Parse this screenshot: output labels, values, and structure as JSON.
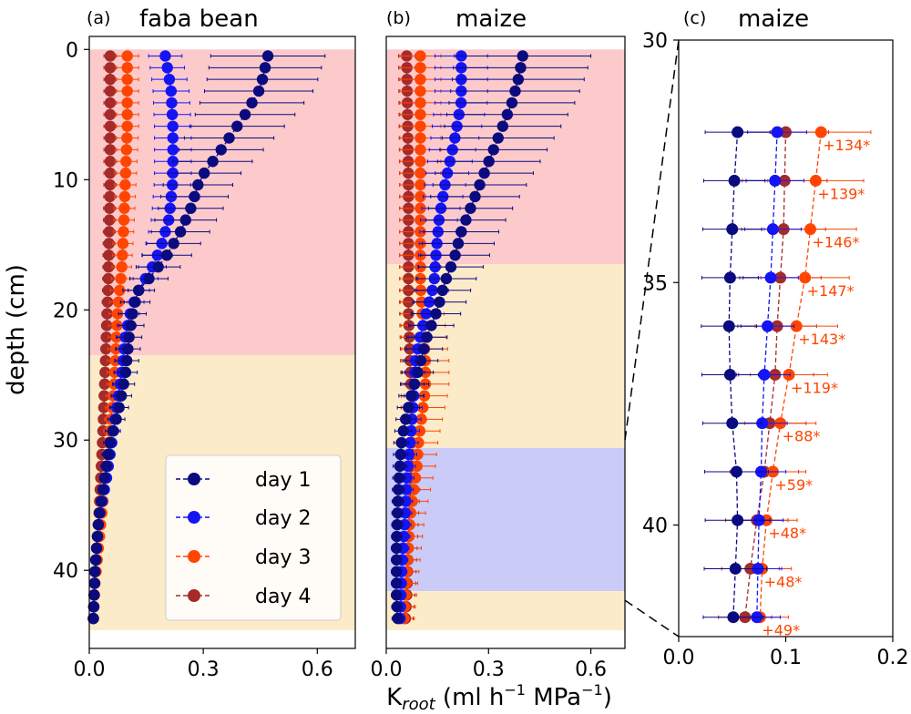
{
  "figure": {
    "ylabel": "depth (cm)",
    "xlabel_main": "K",
    "xlabel_sub": "root",
    "xlabel_rest": " (ml h",
    "xlabel_exp1": "−1",
    "xlabel_mid": " MPa",
    "xlabel_exp2": "−1",
    "xlabel_close": ")"
  },
  "colors": {
    "day1": "#0b0b80",
    "day2": "#1414f5",
    "day3": "#ff4500",
    "day4": "#a52a2a",
    "band_pink": "#fccaca",
    "band_beige": "#fcebc9",
    "band_blue": "#cbcbf8"
  },
  "legend": {
    "placement": "lower-right of panel (a)",
    "entries": [
      "day 1",
      "day 2",
      "day 3",
      "day 4"
    ]
  },
  "chart_data": [
    {
      "panel": "(a)",
      "title": "faba bean",
      "type": "line",
      "xlim": [
        0,
        0.7
      ],
      "ylim": [
        46,
        -1
      ],
      "xticks": [
        "0.0",
        "0.3",
        "0.6"
      ],
      "xtick_values": [
        0,
        0.3,
        0.6
      ],
      "yticks": [
        "0",
        "10",
        "20",
        "30",
        "40"
      ],
      "ytick_values": [
        0,
        10,
        20,
        30,
        40
      ],
      "bands": [
        {
          "color": "pink",
          "from": 0,
          "to": 23.5
        },
        {
          "color": "beige",
          "from": 23.5,
          "to": 44.6
        }
      ],
      "depth": {
        "start": 0.5,
        "step": 0.9,
        "count": 49
      },
      "series": [
        {
          "name": "day 1",
          "err_frac": 0.32,
          "profile": [
            [
              0.5,
              0.47
            ],
            [
              3,
              0.45
            ],
            [
              5,
              0.41
            ],
            [
              8,
              0.34
            ],
            [
              10,
              0.29
            ],
            [
              12,
              0.27
            ],
            [
              14,
              0.24
            ],
            [
              16,
              0.2
            ],
            [
              17.5,
              0.16
            ],
            [
              18.5,
              0.13
            ],
            [
              20,
              0.115
            ],
            [
              22,
              0.105
            ],
            [
              25,
              0.095
            ],
            [
              28,
              0.075
            ],
            [
              30,
              0.055
            ],
            [
              33,
              0.04
            ],
            [
              36,
              0.025
            ],
            [
              40,
              0.015
            ],
            [
              44.3,
              0.01
            ]
          ]
        },
        {
          "name": "day 2",
          "err_frac": 0.22,
          "profile": [
            [
              0.5,
              0.2
            ],
            [
              3,
              0.215
            ],
            [
              6,
              0.22
            ],
            [
              10,
              0.22
            ],
            [
              13,
              0.21
            ],
            [
              15,
              0.19
            ],
            [
              16.5,
              0.17
            ],
            [
              18.5,
              0.13
            ],
            [
              20,
              0.11
            ],
            [
              22,
              0.095
            ],
            [
              25,
              0.085
            ],
            [
              28,
              0.07
            ],
            [
              30,
              0.06
            ],
            [
              33,
              0.045
            ],
            [
              36,
              0.025
            ],
            [
              40,
              0.015
            ],
            [
              44.3,
              0.01
            ]
          ]
        },
        {
          "name": "day 3",
          "err_frac": 0.3,
          "profile": [
            [
              0.5,
              0.1
            ],
            [
              6,
              0.1
            ],
            [
              10,
              0.095
            ],
            [
              14,
              0.09
            ],
            [
              17,
              0.085
            ],
            [
              20,
              0.075
            ],
            [
              23,
              0.07
            ],
            [
              26,
              0.065
            ],
            [
              29,
              0.055
            ],
            [
              32,
              0.045
            ],
            [
              35,
              0.035
            ],
            [
              38,
              0.025
            ],
            [
              41,
              0.015
            ],
            [
              44.3,
              0.01
            ]
          ]
        },
        {
          "name": "day 4",
          "err_frac": 0.3,
          "profile": [
            [
              0.5,
              0.055
            ],
            [
              10,
              0.055
            ],
            [
              18,
              0.05
            ],
            [
              22,
              0.045
            ],
            [
              26,
              0.04
            ],
            [
              30,
              0.035
            ],
            [
              33,
              0.03
            ],
            [
              36,
              0.025
            ],
            [
              40,
              0.015
            ],
            [
              44.3,
              0.01
            ]
          ]
        }
      ]
    },
    {
      "panel": "(b)",
      "title": "maize",
      "type": "line",
      "xlim": [
        0,
        0.7
      ],
      "ylim": [
        46,
        -1
      ],
      "xticks": [
        "0.0",
        "0.3",
        "0.6"
      ],
      "xtick_values": [
        0,
        0.3,
        0.6
      ],
      "yticks": [],
      "ytick_values": [],
      "bands": [
        {
          "color": "pink",
          "from": 0,
          "to": 16.5
        },
        {
          "color": "beige",
          "from": 16.5,
          "to": 30.6
        },
        {
          "color": "blue",
          "from": 30.6,
          "to": 41.6
        },
        {
          "color": "beige",
          "from": 41.6,
          "to": 44.6
        }
      ],
      "depth": {
        "start": 0.5,
        "step": 0.9,
        "count": 49
      },
      "series": [
        {
          "name": "day 1",
          "err_frac": 0.5,
          "profile": [
            [
              0.5,
              0.4
            ],
            [
              2,
              0.39
            ],
            [
              4,
              0.37
            ],
            [
              6,
              0.34
            ],
            [
              8,
              0.31
            ],
            [
              10,
              0.28
            ],
            [
              12,
              0.25
            ],
            [
              14,
              0.22
            ],
            [
              16,
              0.2
            ],
            [
              18,
              0.17
            ],
            [
              20,
              0.15
            ],
            [
              22,
              0.12
            ],
            [
              24,
              0.1
            ],
            [
              26,
              0.08
            ],
            [
              28,
              0.06
            ],
            [
              30,
              0.045
            ],
            [
              34,
              0.035
            ],
            [
              38,
              0.03
            ],
            [
              42,
              0.03
            ],
            [
              44.3,
              0.035
            ]
          ]
        },
        {
          "name": "day 2",
          "err_frac": 0.35,
          "profile": [
            [
              0.5,
              0.22
            ],
            [
              4,
              0.22
            ],
            [
              7,
              0.2
            ],
            [
              10,
              0.175
            ],
            [
              13,
              0.155
            ],
            [
              16,
              0.145
            ],
            [
              18,
              0.14
            ],
            [
              20,
              0.12
            ],
            [
              22,
              0.1
            ],
            [
              24,
              0.085
            ],
            [
              27,
              0.08
            ],
            [
              30,
              0.07
            ],
            [
              33,
              0.06
            ],
            [
              36,
              0.055
            ],
            [
              40,
              0.045
            ],
            [
              44.3,
              0.04
            ]
          ]
        },
        {
          "name": "day 3",
          "err_frac": 0.6,
          "profile": [
            [
              0.5,
              0.1
            ],
            [
              10,
              0.1
            ],
            [
              18,
              0.1
            ],
            [
              20,
              0.105
            ],
            [
              24,
              0.115
            ],
            [
              26,
              0.115
            ],
            [
              28,
              0.105
            ],
            [
              30,
              0.095
            ],
            [
              32,
              0.09
            ],
            [
              36,
              0.07
            ],
            [
              40,
              0.06
            ],
            [
              44.3,
              0.05
            ]
          ]
        },
        {
          "name": "day 4",
          "err_frac": 0.4,
          "profile": [
            [
              0.5,
              0.06
            ],
            [
              10,
              0.065
            ],
            [
              20,
              0.065
            ],
            [
              24,
              0.07
            ],
            [
              28,
              0.075
            ],
            [
              30,
              0.075
            ],
            [
              34,
              0.07
            ],
            [
              38,
              0.065
            ],
            [
              42,
              0.06
            ],
            [
              44.3,
              0.055
            ]
          ]
        }
      ]
    },
    {
      "panel": "(c)",
      "title": "maize",
      "type": "line",
      "xlim": [
        0,
        0.2
      ],
      "ylim": [
        42.3,
        30
      ],
      "xticks": [
        "0.0",
        "0.1",
        "0.2"
      ],
      "xtick_values": [
        0,
        0.1,
        0.2
      ],
      "yticks": [
        "30",
        "35",
        "40"
      ],
      "ytick_values": [
        30,
        35,
        40
      ],
      "depths": [
        31.9,
        32.9,
        33.9,
        34.9,
        35.9,
        36.9,
        37.9,
        38.9,
        39.9,
        40.9,
        41.9
      ],
      "annotations": [
        "+134*",
        "+139*",
        "+146*",
        "+147*",
        "+143*",
        "+119*",
        "+88*",
        "+59*",
        "+48*",
        "+48*",
        "+49*"
      ],
      "series": [
        {
          "name": "day 1",
          "err_frac": 0.55,
          "values": [
            0.055,
            0.052,
            0.05,
            0.048,
            0.047,
            0.048,
            0.05,
            0.054,
            0.055,
            0.053,
            0.051
          ]
        },
        {
          "name": "day 2",
          "err_frac": 0.3,
          "values": [
            0.092,
            0.09,
            0.088,
            0.086,
            0.083,
            0.08,
            0.078,
            0.077,
            0.075,
            0.074,
            0.073
          ]
        },
        {
          "name": "day 3",
          "err_frac": 0.35,
          "values": [
            0.133,
            0.128,
            0.123,
            0.118,
            0.11,
            0.103,
            0.095,
            0.088,
            0.082,
            0.078,
            0.076
          ]
        },
        {
          "name": "day 4",
          "err_frac": 0.4,
          "values": [
            0.1,
            0.099,
            0.098,
            0.095,
            0.092,
            0.09,
            0.085,
            0.08,
            0.073,
            0.067,
            0.062
          ]
        }
      ]
    }
  ]
}
